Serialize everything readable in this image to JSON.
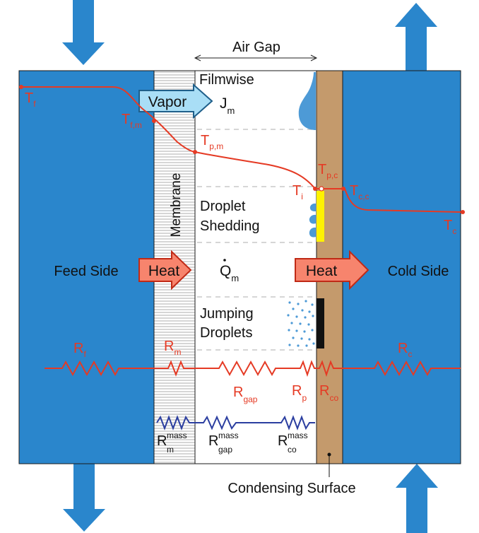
{
  "colors": {
    "feed_blue": "#2a86cc",
    "cold_blue": "#2a86cc",
    "plate_brown": "#c49a6c",
    "temp_red": "#e53a24",
    "mass_blue": "#2b3ea0",
    "heat_fill": "#f7846d",
    "heat_stroke": "#c02a16",
    "vapor_fill": "#a9def6",
    "vapor_stroke": "#1f5f8a",
    "droplet_blue": "#4d9ad6",
    "coating_yellow": "#fff200",
    "superhydrophobic_black": "#111111"
  },
  "labels": {
    "air_gap": "Air Gap",
    "filmwise": "Filmwise",
    "vapor": "Vapor",
    "jm_main": "J",
    "jm_sub": "m",
    "membrane": "Membrane",
    "droplet": "Droplet",
    "shedding": "Shedding",
    "jumping": "Jumping",
    "droplets": "Droplets",
    "feed_side": "Feed Side",
    "cold_side": "Cold Side",
    "heat_left": "Heat",
    "heat_right": "Heat",
    "qm_main": "Q",
    "qm_sub": "m",
    "condensing_surface": "Condensing Surface"
  },
  "temps": {
    "tf": {
      "main": "T",
      "sub": "f"
    },
    "tfm": {
      "main": "T",
      "sub": "f,m"
    },
    "tpm": {
      "main": "T",
      "sub": "p,m"
    },
    "ti": {
      "main": "T",
      "sub": "i"
    },
    "tpc": {
      "main": "T",
      "sub": "p,c"
    },
    "tcc": {
      "main": "T",
      "sub": "c,c"
    },
    "tc": {
      "main": "T",
      "sub": "c"
    }
  },
  "resistances": {
    "rf": {
      "main": "R",
      "sub": "f"
    },
    "rm": {
      "main": "R",
      "sub": "m"
    },
    "rc": {
      "main": "R",
      "sub": "c"
    },
    "rgap": {
      "main": "R",
      "sub": "gap"
    },
    "rp": {
      "main": "R",
      "sub": "p"
    },
    "rco": {
      "main": "R",
      "sub": "co"
    },
    "rm_mass": {
      "main": "R",
      "sup": "mass",
      "sub": "m"
    },
    "rgap_mass": {
      "main": "R",
      "sup": "mass",
      "sub": "gap"
    },
    "rco_mass": {
      "main": "R",
      "sup": "mass",
      "sub": "co"
    }
  }
}
